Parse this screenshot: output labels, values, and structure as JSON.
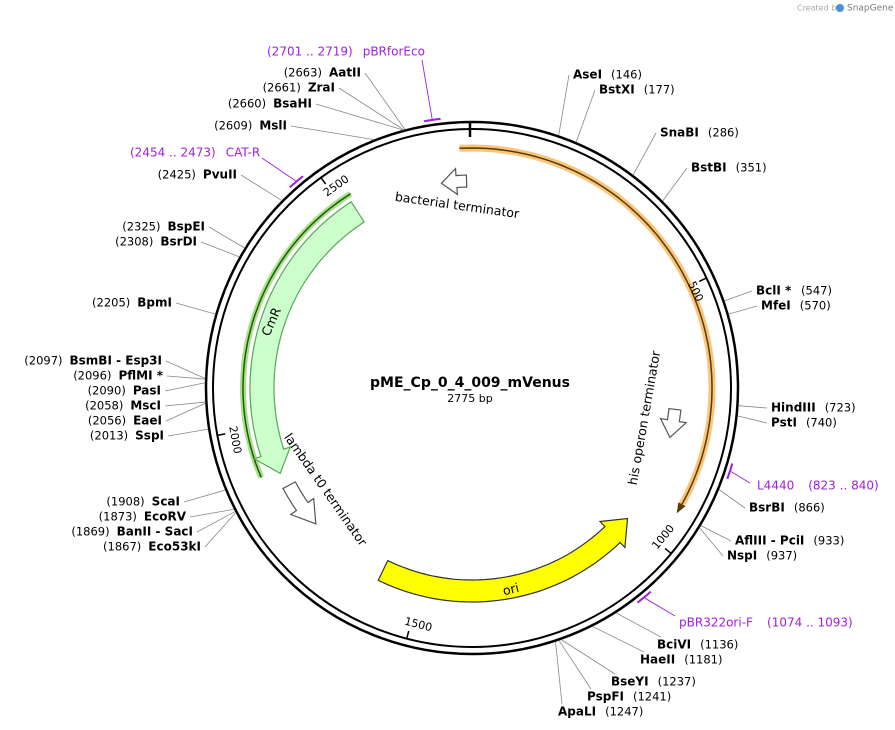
{
  "credit": {
    "prefix": "Created by",
    "brand": "SnapGene"
  },
  "plasmid": {
    "name": "pME_Cp_0_4_009_mVenus",
    "length": "2775 bp"
  },
  "ticks": [
    500,
    1000,
    1500,
    2000,
    2500
  ],
  "features": [
    {
      "label": "bacterial terminator"
    },
    {
      "label": "his operon terminator"
    },
    {
      "label": "lambda t0 terminator"
    },
    {
      "label": "CmR"
    },
    {
      "label": "ori"
    }
  ],
  "primers": [
    {
      "name": "L4440",
      "range": "(823 .. 840)"
    },
    {
      "name": "pBR322ori-F",
      "range": "(1074 .. 1093)"
    },
    {
      "name": "CAT-R",
      "range": "(2454 .. 2473)"
    },
    {
      "name": "pBRforEco",
      "range": "(2701 .. 2719)"
    }
  ],
  "sites": [
    {
      "name": "AseI",
      "position": "(146)"
    },
    {
      "name": "BstXI",
      "position": "(177)"
    },
    {
      "name": "SnaBI",
      "position": "(286)"
    },
    {
      "name": "BstBI",
      "position": "(351)"
    },
    {
      "name": "BclI *",
      "position": "(547)"
    },
    {
      "name": "MfeI",
      "position": "(570)"
    },
    {
      "name": "HindIII",
      "position": "(723)"
    },
    {
      "name": "PstI",
      "position": "(740)"
    },
    {
      "name": "BsrBI",
      "position": "(866)"
    },
    {
      "name": "AflIII  - PciI",
      "position": "(933)"
    },
    {
      "name": "NspI",
      "position": "(937)"
    },
    {
      "name": "BciVI",
      "position": "(1136)"
    },
    {
      "name": "HaeII",
      "position": "(1181)"
    },
    {
      "name": "BseYI",
      "position": "(1237)"
    },
    {
      "name": "PspFI",
      "position": "(1241)"
    },
    {
      "name": "ApaLI",
      "position": "(1247)"
    },
    {
      "name": "Eco53kI",
      "position": "(1867)"
    },
    {
      "name": "BanII  - SacI",
      "position": "(1869)"
    },
    {
      "name": "EcoRV",
      "position": "(1873)"
    },
    {
      "name": "ScaI",
      "position": "(1908)"
    },
    {
      "name": "SspI",
      "position": "(2013)"
    },
    {
      "name": "EaeI",
      "position": "(2056)"
    },
    {
      "name": "MscI",
      "position": "(2058)"
    },
    {
      "name": "PasI",
      "position": "(2090)"
    },
    {
      "name": "PflMI *",
      "position": "(2096)"
    },
    {
      "name": "BsmBI  - Esp3I",
      "position": "(2097)"
    },
    {
      "name": "BpmI",
      "position": "(2205)"
    },
    {
      "name": "BsrDI",
      "position": "(2308)"
    },
    {
      "name": "BspEI",
      "position": "(2325)"
    },
    {
      "name": "PvuII",
      "position": "(2425)"
    },
    {
      "name": "MslI",
      "position": "(2609)"
    },
    {
      "name": "BsaHI",
      "position": "(2660)"
    },
    {
      "name": "ZraI",
      "position": "(2661)"
    },
    {
      "name": "AatII",
      "position": "(2663)"
    }
  ]
}
